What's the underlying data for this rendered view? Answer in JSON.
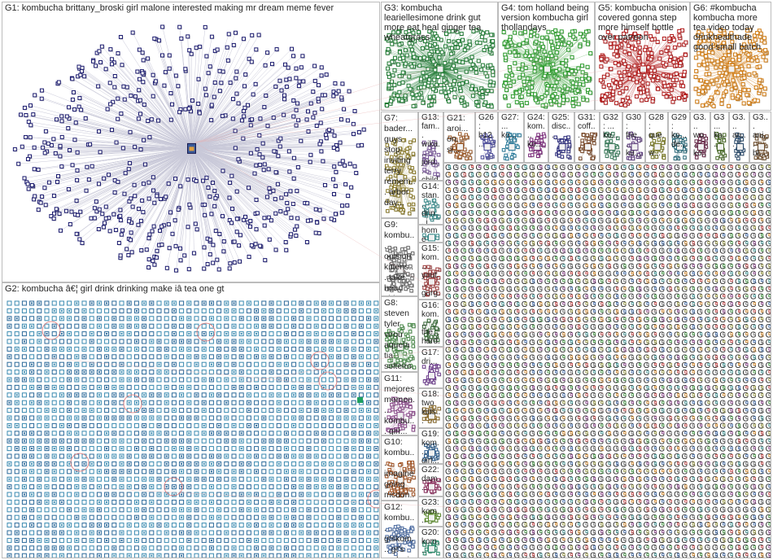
{
  "groups": [
    {
      "id": "g1",
      "label": "G1: kombucha brittany_broski girl malone interested making mr dream meme fever",
      "color": "#1a1a6e",
      "kind": "hub"
    },
    {
      "id": "g2",
      "label": "G2: kombucha â€¦ girl drink drinking make iâ tea one gt",
      "color": "#2b6a9a",
      "kind": "grid"
    },
    {
      "id": "g3",
      "label": "G3: kombucha leariellesimone drink gut more eat heal ginger tea wheatgrass",
      "color": "#1e7a32",
      "kind": "cluster"
    },
    {
      "id": "g4",
      "label": "G4: tom holland being version kombucha girl thollandays",
      "color": "#2a9a2a",
      "kind": "cluster"
    },
    {
      "id": "g5",
      "label": "G5: kombucha onision covered gonna step more himself bottle over patreon",
      "color": "#b01818",
      "kind": "cluster"
    },
    {
      "id": "g6",
      "label": "G6: #kombucha kombucha more tea video today drinkhealthade good small batch",
      "color": "#d07a10",
      "kind": "cluster"
    },
    {
      "id": "g7",
      "label": "G7: bader... guys stop inviting terry remem... arbor day...",
      "color": "#8a7a2a",
      "kind": "cluster"
    },
    {
      "id": "g9",
      "label": "G9: kombu... onision kittens... take head video...",
      "color": "#6a6a6a",
      "kind": "cluster"
    },
    {
      "id": "g8",
      "label": "G8: steven tyler virou aquela tia solteiro...",
      "color": "#4a8a4a",
      "kind": "cluster"
    },
    {
      "id": "g11",
      "label": "G11: mejores momen... kombu... girl...",
      "color": "#8a4a8a",
      "kind": "cluster"
    },
    {
      "id": "g10",
      "label": "G10: kombu... imagine going mcdon...",
      "color": "#a05020",
      "kind": "cluster"
    },
    {
      "id": "g12",
      "label": "G12: kombu... gtskom... gt's replaci...",
      "color": "#4a6aa0",
      "kind": "cluster"
    },
    {
      "id": "g13",
      "label": "G13: fam... wika... jord... child... love...",
      "color": "#7a5a9a",
      "kind": "cluster"
    },
    {
      "id": "g14",
      "label": "G14: stan... drin... i...",
      "color": "#3a8a8a",
      "kind": "cluster"
    },
    {
      "id": "g14b",
      "label": "home bre...",
      "color": "#3a8a8a",
      "kind": "cluster"
    },
    {
      "id": "g15",
      "label": "G15: kom... yout... gurg... old...",
      "color": "#9a3a3a",
      "kind": "cluster"
    },
    {
      "id": "g16",
      "label": "G16: kom... the... hard...",
      "color": "#3a6a3a",
      "kind": "cluster"
    },
    {
      "id": "g17",
      "label": "G17: dri...",
      "color": "#6a3a8a",
      "kind": "cluster"
    },
    {
      "id": "g18",
      "label": "G18: two kids...",
      "color": "#8a6a2a",
      "kind": "cluster"
    },
    {
      "id": "g19",
      "label": "G19: kom... girl...",
      "color": "#2a5a8a",
      "kind": "cluster"
    },
    {
      "id": "g22",
      "label": "G22: dam...",
      "color": "#8a2a5a",
      "kind": "cluster"
    },
    {
      "id": "g23",
      "label": "G23: kom...",
      "color": "#5a8a2a",
      "kind": "cluster"
    },
    {
      "id": "g20",
      "label": "G20: kom...",
      "color": "#2a8a6a",
      "kind": "cluster"
    },
    {
      "id": "g21",
      "label": "G21: aroi... on... si...",
      "color": "#9a5a2a",
      "kind": "cluster"
    },
    {
      "id": "g26",
      "label": "G26: b12...",
      "color": "#4a4a9a",
      "kind": "cluster"
    },
    {
      "id": "g27",
      "label": "G27: ... ko...",
      "color": "#2a7a9a",
      "kind": "cluster"
    },
    {
      "id": "g24",
      "label": "G24: kom... ko...",
      "color": "#7a2a7a",
      "kind": "cluster"
    },
    {
      "id": "g25",
      "label": "G25: disc...",
      "color": "#2a2a7a",
      "kind": "cluster"
    },
    {
      "id": "g31",
      "label": "G31: coff...",
      "color": "#7a4a2a",
      "kind": "cluster"
    },
    {
      "id": "g32",
      "label": "G32: ... ko...",
      "color": "#3a7a5a",
      "kind": "cluster"
    },
    {
      "id": "g30",
      "label": "G30: frie... ko...",
      "color": "#5a3a7a",
      "kind": "cluster"
    },
    {
      "id": "g28",
      "label": "G28: que... w...",
      "color": "#7a7a2a",
      "kind": "cluster"
    },
    {
      "id": "g29",
      "label": "G29: ko... de...",
      "color": "#2a6a7a",
      "kind": "cluster"
    },
    {
      "id": "g3x1",
      "label": "G3... wo... ko...",
      "color": "#6a2a4a",
      "kind": "cluster"
    },
    {
      "id": "g3x2",
      "label": "G3... ko...",
      "color": "#4a6a2a",
      "kind": "cluster"
    },
    {
      "id": "g3x3",
      "label": "G3... an...",
      "color": "#2a4a6a",
      "kind": "cluster"
    },
    {
      "id": "g3x4",
      "label": "G3... ani... bl...",
      "color": "#6a4a2a",
      "kind": "cluster"
    },
    {
      "id": "gsmall",
      "label": "",
      "color": "#5a5a5a",
      "kind": "tiles"
    }
  ]
}
